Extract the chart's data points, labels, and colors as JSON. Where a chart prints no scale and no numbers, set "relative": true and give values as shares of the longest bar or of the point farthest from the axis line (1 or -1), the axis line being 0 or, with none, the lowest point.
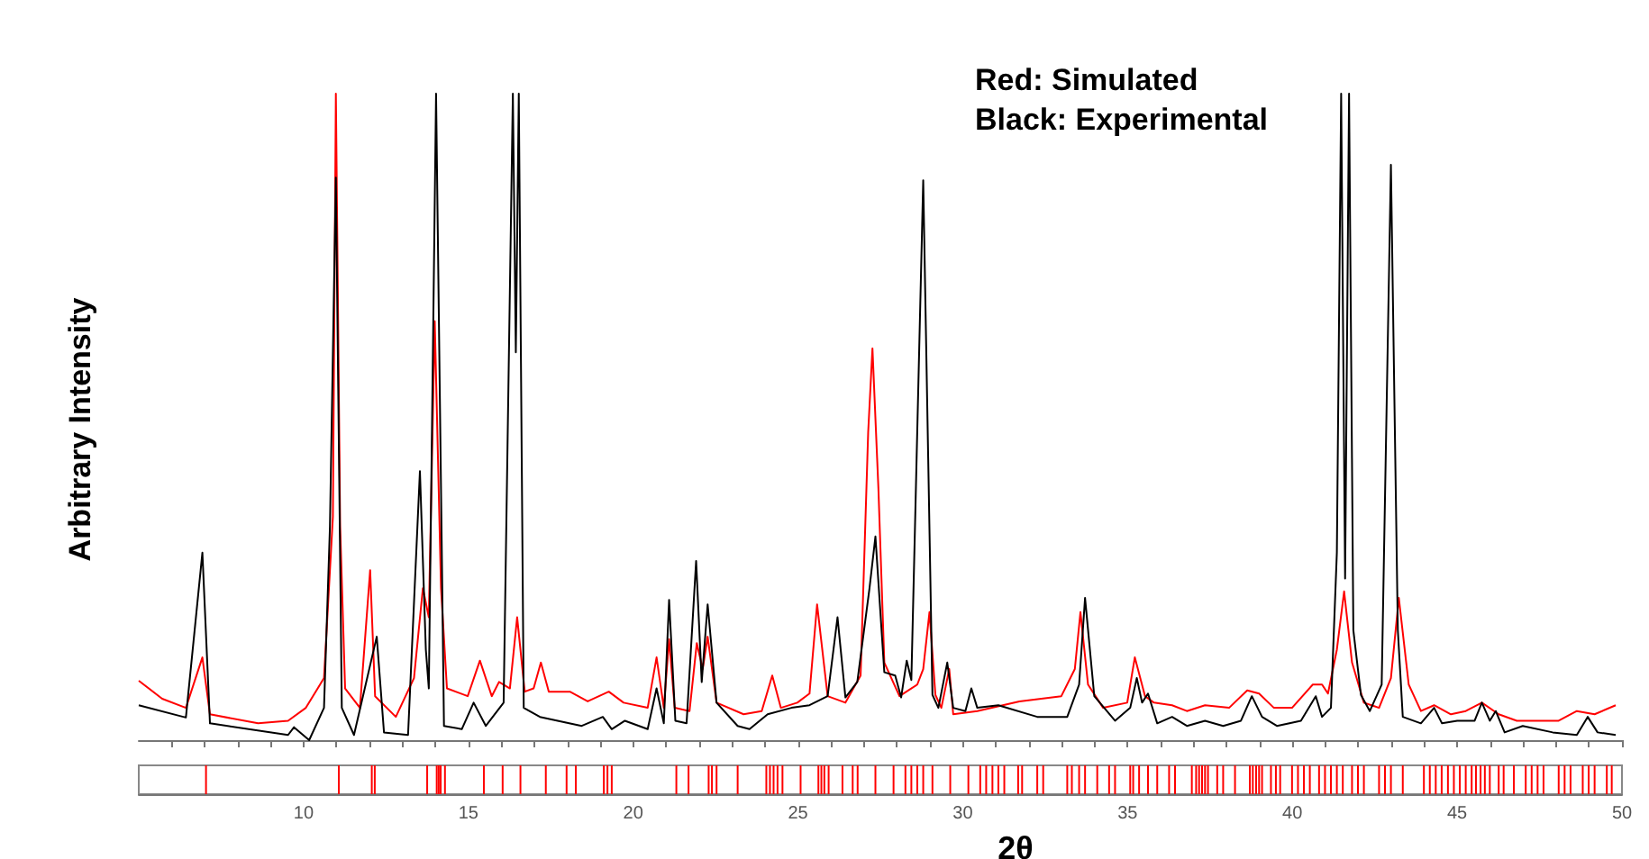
{
  "chart_data": [
    {
      "type": "line",
      "ylabel": "Arbitrary Intensity",
      "xlabel": "2θ",
      "relative": true,
      "tick_labels": "x",
      "marker": "none",
      "line_style": "solid",
      "xlim": [
        5,
        50
      ],
      "xticks": [
        {
          "value": 6,
          "label": null
        },
        {
          "value": 7,
          "label": null
        },
        {
          "value": 8,
          "label": null
        },
        {
          "value": 9,
          "label": null
        },
        10,
        {
          "value": 11,
          "label": null
        },
        {
          "value": 12,
          "label": null
        },
        {
          "value": 13,
          "label": null
        },
        {
          "value": 14,
          "label": null
        },
        15,
        {
          "value": 16,
          "label": null
        },
        {
          "value": 17,
          "label": null
        },
        {
          "value": 18,
          "label": null
        },
        {
          "value": 19,
          "label": null
        },
        20,
        {
          "value": 21,
          "label": null
        },
        {
          "value": 22,
          "label": null
        },
        {
          "value": 23,
          "label": null
        },
        {
          "value": 24,
          "label": null
        },
        25,
        {
          "value": 26,
          "label": null
        },
        {
          "value": 27,
          "label": null
        },
        {
          "value": 28,
          "label": null
        },
        {
          "value": 29,
          "label": null
        },
        30,
        {
          "value": 31,
          "label": null
        },
        {
          "value": 32,
          "label": null
        },
        {
          "value": 33,
          "label": null
        },
        {
          "value": 34,
          "label": null
        },
        35,
        {
          "value": 36,
          "label": null
        },
        {
          "value": 37,
          "label": null
        },
        {
          "value": 38,
          "label": null
        },
        {
          "value": 39,
          "label": null
        },
        40,
        {
          "value": 41,
          "label": null
        },
        {
          "value": 42,
          "label": null
        },
        {
          "value": 43,
          "label": null
        },
        {
          "value": 44,
          "label": null
        },
        45,
        {
          "value": 46,
          "label": null
        },
        {
          "value": 47,
          "label": null
        },
        {
          "value": 48,
          "label": null
        },
        {
          "value": 49,
          "label": null
        },
        50
      ],
      "annotations": [
        "Red: Simulated",
        "Black: Experimental"
      ],
      "series": [
        {
          "color": "#ff0000",
          "x": [
            5.0,
            5.71,
            6.43,
            6.93,
            7.16,
            8.62,
            9.53,
            10.07,
            10.62,
            10.89,
            10.98,
            11.11,
            11.26,
            11.71,
            12.02,
            12.17,
            12.8,
            13.35,
            13.62,
            13.8,
            13.98,
            14.17,
            14.35,
            14.98,
            15.35,
            15.71,
            15.93,
            16.26,
            16.48,
            16.71,
            16.98,
            17.2,
            17.44,
            18.08,
            18.62,
            19.26,
            19.71,
            20.44,
            20.71,
            20.93,
            21.09,
            21.26,
            21.71,
            21.93,
            22.11,
            22.26,
            22.53,
            23.35,
            23.9,
            24.22,
            24.48,
            24.98,
            25.35,
            25.58,
            25.9,
            26.44,
            26.9,
            27.13,
            27.26,
            27.44,
            27.62,
            28.08,
            28.62,
            28.8,
            28.99,
            29.17,
            29.35,
            29.59,
            29.71,
            30.44,
            31.72,
            32.99,
            33.4,
            33.57,
            33.8,
            34.26,
            34.99,
            35.22,
            35.53,
            35.8,
            36.35,
            36.8,
            37.35,
            38.08,
            38.63,
            38.99,
            39.44,
            39.99,
            40.62,
            40.9,
            41.08,
            41.35,
            41.57,
            41.81,
            42.17,
            42.63,
            42.99,
            43.23,
            43.53,
            43.9,
            44.3,
            44.81,
            45.26,
            45.75,
            46.26,
            46.81,
            48.08,
            48.63,
            49.17,
            49.81
          ],
          "values": [
            0.092,
            0.064,
            0.05,
            0.128,
            0.04,
            0.026,
            0.03,
            0.05,
            0.096,
            0.346,
            1.0,
            0.33,
            0.08,
            0.05,
            0.263,
            0.068,
            0.036,
            0.096,
            0.235,
            0.19,
            0.648,
            0.235,
            0.08,
            0.068,
            0.123,
            0.068,
            0.09,
            0.08,
            0.19,
            0.075,
            0.08,
            0.12,
            0.075,
            0.075,
            0.06,
            0.075,
            0.058,
            0.05,
            0.128,
            0.05,
            0.156,
            0.05,
            0.045,
            0.15,
            0.11,
            0.16,
            0.058,
            0.04,
            0.045,
            0.1,
            0.05,
            0.058,
            0.072,
            0.21,
            0.068,
            0.058,
            0.1,
            0.476,
            0.606,
            0.39,
            0.12,
            0.068,
            0.086,
            0.11,
            0.198,
            0.07,
            0.05,
            0.11,
            0.04,
            0.045,
            0.06,
            0.068,
            0.11,
            0.198,
            0.086,
            0.05,
            0.058,
            0.128,
            0.068,
            0.058,
            0.054,
            0.045,
            0.054,
            0.05,
            0.077,
            0.072,
            0.05,
            0.05,
            0.086,
            0.086,
            0.072,
            0.14,
            0.23,
            0.12,
            0.058,
            0.05,
            0.096,
            0.22,
            0.086,
            0.045,
            0.054,
            0.04,
            0.045,
            0.058,
            0.04,
            0.03,
            0.03,
            0.045,
            0.04,
            0.054
          ]
        },
        {
          "color": "#000000",
          "x": [
            5.0,
            6.43,
            6.93,
            7.16,
            9.53,
            9.71,
            10.17,
            10.62,
            10.8,
            10.98,
            11.16,
            11.53,
            12.22,
            12.44,
            13.17,
            13.53,
            13.71,
            13.8,
            14.02,
            14.26,
            14.8,
            15.16,
            15.53,
            16.07,
            16.35,
            16.44,
            16.53,
            16.68,
            17.17,
            18.44,
            19.08,
            19.35,
            19.75,
            20.44,
            20.71,
            20.93,
            21.09,
            21.28,
            21.62,
            21.91,
            22.08,
            22.26,
            22.53,
            23.17,
            23.53,
            24.08,
            24.8,
            25.35,
            25.9,
            26.2,
            26.44,
            26.8,
            27.17,
            27.35,
            27.62,
            27.95,
            28.13,
            28.3,
            28.44,
            28.8,
            29.08,
            29.26,
            29.53,
            29.71,
            30.08,
            30.26,
            30.44,
            31.08,
            32.26,
            33.17,
            33.53,
            33.71,
            33.99,
            34.62,
            35.08,
            35.28,
            35.44,
            35.62,
            35.9,
            36.35,
            36.8,
            37.35,
            37.9,
            38.44,
            38.77,
            39.08,
            39.53,
            40.26,
            40.71,
            40.9,
            41.17,
            41.35,
            41.48,
            41.6,
            41.72,
            41.85,
            42.08,
            42.35,
            42.71,
            42.99,
            43.2,
            43.35,
            43.9,
            44.3,
            44.54,
            45.0,
            45.53,
            45.75,
            45.99,
            46.17,
            46.44,
            46.99,
            47.9,
            48.63,
            48.96,
            49.26,
            49.81
          ],
          "values": [
            0.054,
            0.035,
            0.29,
            0.026,
            0.008,
            0.02,
            0,
            0.05,
            0.33,
            0.87,
            0.05,
            0.008,
            0.16,
            0.012,
            0.008,
            0.416,
            0.14,
            0.08,
            1.0,
            0.022,
            0.017,
            0.058,
            0.022,
            0.058,
            1.0,
            0.6,
            1.0,
            0.05,
            0.036,
            0.022,
            0.036,
            0.017,
            0.03,
            0.017,
            0.08,
            0.026,
            0.217,
            0.03,
            0.026,
            0.277,
            0.09,
            0.21,
            0.058,
            0.022,
            0.017,
            0.04,
            0.05,
            0.054,
            0.068,
            0.19,
            0.066,
            0.09,
            0.235,
            0.315,
            0.105,
            0.1,
            0.066,
            0.123,
            0.093,
            0.866,
            0.07,
            0.05,
            0.12,
            0.05,
            0.045,
            0.08,
            0.05,
            0.054,
            0.036,
            0.036,
            0.086,
            0.22,
            0.068,
            0.03,
            0.05,
            0.096,
            0.058,
            0.072,
            0.026,
            0.036,
            0.022,
            0.03,
            0.022,
            0.03,
            0.068,
            0.036,
            0.022,
            0.03,
            0.068,
            0.036,
            0.05,
            0.29,
            1.0,
            0.25,
            1.0,
            0.17,
            0.07,
            0.045,
            0.086,
            0.89,
            0.17,
            0.036,
            0.026,
            0.05,
            0.026,
            0.03,
            0.03,
            0.058,
            0.03,
            0.045,
            0.012,
            0.022,
            0.012,
            0.008,
            0.036,
            0.012,
            0.008
          ]
        }
      ]
    },
    {
      "type": "bar",
      "relative": true,
      "tick_labels": false,
      "color": "#ff0000",
      "xlim": [
        5,
        50
      ],
      "x": [
        7.04,
        11.07,
        12.07,
        12.16,
        13.75,
        14.04,
        14.1,
        14.16,
        14.29,
        15.47,
        16.04,
        16.58,
        17.35,
        17.98,
        18.26,
        19.11,
        19.22,
        19.35,
        21.31,
        21.68,
        22.29,
        22.39,
        22.53,
        23.17,
        24.04,
        24.15,
        24.26,
        24.38,
        24.53,
        25.08,
        25.62,
        25.71,
        25.8,
        25.93,
        26.35,
        26.66,
        26.81,
        27.35,
        27.9,
        28.26,
        28.44,
        28.62,
        28.8,
        29.08,
        29.62,
        30.17,
        30.53,
        30.71,
        30.9,
        31.08,
        31.26,
        31.68,
        31.8,
        32.26,
        32.44,
        33.17,
        33.31,
        33.53,
        33.71,
        34.08,
        34.44,
        34.62,
        35.08,
        35.17,
        35.35,
        35.62,
        35.9,
        36.26,
        36.44,
        36.95,
        37.08,
        37.17,
        37.26,
        37.35,
        37.44,
        37.72,
        37.9,
        38.26,
        38.71,
        38.8,
        38.9,
        38.99,
        39.08,
        39.35,
        39.5,
        39.63,
        39.99,
        40.17,
        40.35,
        40.53,
        40.81,
        40.99,
        41.17,
        41.35,
        41.53,
        41.81,
        41.99,
        42.17,
        42.63,
        42.81,
        42.99,
        43.35,
        43.99,
        44.17,
        44.35,
        44.53,
        44.72,
        44.9,
        45.08,
        45.26,
        45.44,
        45.57,
        45.71,
        45.84,
        45.99,
        46.26,
        46.41,
        46.72,
        47.08,
        47.26,
        47.44,
        47.62,
        48.08,
        48.26,
        48.44,
        48.81,
        48.99,
        49.17,
        49.54,
        49.69
      ],
      "values": [
        1,
        1,
        1,
        1,
        1,
        1,
        1,
        1,
        1,
        1,
        1,
        1,
        1,
        1,
        1,
        1,
        1,
        1,
        1,
        1,
        1,
        1,
        1,
        1,
        1,
        1,
        1,
        1,
        1,
        1,
        1,
        1,
        1,
        1,
        1,
        1,
        1,
        1,
        1,
        1,
        1,
        1,
        1,
        1,
        1,
        1,
        1,
        1,
        1,
        1,
        1,
        1,
        1,
        1,
        1,
        1,
        1,
        1,
        1,
        1,
        1,
        1,
        1,
        1,
        1,
        1,
        1,
        1,
        1,
        1,
        1,
        1,
        1,
        1,
        1,
        1,
        1,
        1,
        1,
        1,
        1,
        1,
        1,
        1,
        1,
        1,
        1,
        1,
        1,
        1,
        1,
        1,
        1,
        1,
        1,
        1,
        1,
        1,
        1,
        1,
        1,
        1,
        1,
        1,
        1,
        1,
        1,
        1,
        1,
        1,
        1,
        1,
        1,
        1,
        1,
        1,
        1,
        1,
        1,
        1,
        1,
        1,
        1,
        1,
        1,
        1,
        1,
        1,
        1,
        1
      ]
    }
  ]
}
